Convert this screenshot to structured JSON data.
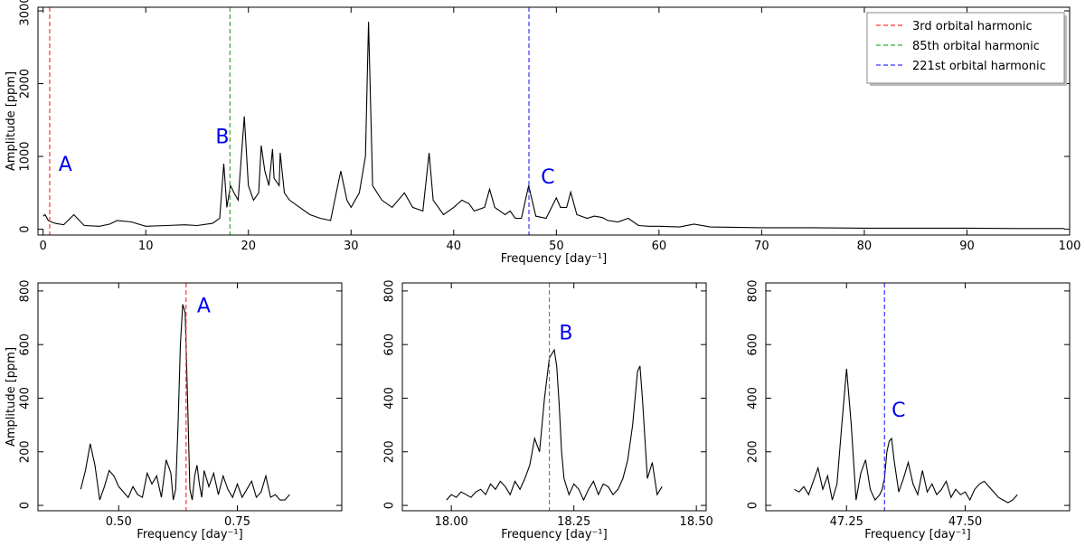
{
  "chart_data": [
    {
      "id": "main",
      "type": "line",
      "xlabel": "Frequency [day$^{-1}$]",
      "xlabel_display": "Frequency [day⁻¹]",
      "ylabel": "Amplitude [ppm]",
      "xlim": [
        -0.5,
        100
      ],
      "ylim": [
        -80,
        3050
      ],
      "xticks": [
        0,
        10,
        20,
        30,
        40,
        50,
        60,
        70,
        80,
        90,
        100
      ],
      "yticks": [
        0,
        1000,
        2000,
        3000
      ],
      "series": [
        {
          "style": "black-line",
          "x": [
            0,
            0.2,
            0.5,
            0.8,
            1.2,
            2,
            3,
            4,
            5.5,
            6.5,
            7.2,
            8.6,
            10,
            12,
            13.8,
            15,
            16.5,
            17.2,
            17.6,
            17.9,
            18.25,
            18.6,
            19,
            19.6,
            20,
            20.5,
            21,
            21.25,
            21.6,
            22,
            22.35,
            22.5,
            23,
            23.1,
            23.5,
            24,
            25,
            26,
            27,
            28,
            29,
            29.6,
            30,
            30.8,
            31.4,
            31.7,
            32.1,
            33,
            34,
            35.2,
            36,
            37,
            37.6,
            38,
            38.5,
            39,
            40,
            40.8,
            41.5,
            42,
            43,
            43.5,
            44,
            45,
            45.5,
            46,
            46.6,
            47.3,
            48,
            49,
            50,
            50.4,
            51,
            51.4,
            52,
            53,
            53.7,
            54.5,
            55,
            56,
            57,
            58,
            59,
            60,
            62,
            63.4,
            65,
            70,
            75,
            80,
            85,
            90,
            95,
            99.5
          ],
          "y": [
            180,
            200,
            120,
            100,
            80,
            60,
            200,
            50,
            40,
            70,
            120,
            100,
            40,
            50,
            60,
            50,
            80,
            150,
            900,
            300,
            600,
            500,
            400,
            1550,
            600,
            400,
            500,
            1150,
            800,
            600,
            1100,
            700,
            600,
            1050,
            500,
            400,
            300,
            200,
            150,
            120,
            800,
            400,
            300,
            500,
            1000,
            2850,
            600,
            400,
            300,
            500,
            300,
            250,
            1050,
            400,
            300,
            200,
            300,
            400,
            350,
            250,
            300,
            550,
            300,
            200,
            250,
            150,
            150,
            600,
            180,
            150,
            430,
            300,
            300,
            510,
            200,
            150,
            180,
            160,
            120,
            100,
            150,
            50,
            40,
            40,
            30,
            70,
            30,
            20,
            20,
            15,
            15,
            15,
            10,
            10
          ]
        }
      ],
      "vlines": [
        {
          "x": 0.642,
          "color": "#ff3333",
          "label": "3rd orbital harmonic"
        },
        {
          "x": 18.2,
          "color": "#33aa33",
          "label": "85th orbital harmonic"
        },
        {
          "x": 47.33,
          "color": "#3333ff",
          "label": "221st orbital harmonic"
        }
      ],
      "annotations": [
        {
          "text": "A",
          "x": 1.5,
          "y": 800
        },
        {
          "text": "B",
          "x": 16.8,
          "y": 1180
        },
        {
          "text": "C",
          "x": 48.5,
          "y": 630
        }
      ],
      "legend": "top-right"
    },
    {
      "id": "zoomA",
      "type": "line",
      "xlabel": "Frequency [day$^{-1}$]",
      "xlabel_display": "Frequency [day⁻¹]",
      "ylabel": "Amplitude [ppm]",
      "xlim": [
        0.33,
        0.97
      ],
      "ylim": [
        -20,
        830
      ],
      "xticks": [
        0.5,
        0.75
      ],
      "xtick_labels": [
        "0.50",
        "0.75"
      ],
      "yticks": [
        0,
        200,
        400,
        600,
        800
      ],
      "series": [
        {
          "style": "black-line",
          "x": [
            0.42,
            0.43,
            0.44,
            0.45,
            0.46,
            0.47,
            0.48,
            0.49,
            0.5,
            0.51,
            0.52,
            0.53,
            0.54,
            0.55,
            0.56,
            0.57,
            0.58,
            0.59,
            0.6,
            0.61,
            0.615,
            0.62,
            0.625,
            0.63,
            0.635,
            0.64,
            0.645,
            0.65,
            0.655,
            0.66,
            0.665,
            0.67,
            0.675,
            0.68,
            0.69,
            0.7,
            0.71,
            0.72,
            0.73,
            0.74,
            0.75,
            0.76,
            0.77,
            0.78,
            0.79,
            0.8,
            0.81,
            0.82,
            0.83,
            0.84,
            0.85,
            0.86
          ],
          "y": [
            60,
            130,
            230,
            150,
            20,
            70,
            130,
            110,
            70,
            50,
            30,
            70,
            40,
            30,
            120,
            80,
            110,
            30,
            170,
            120,
            20,
            60,
            300,
            600,
            750,
            720,
            400,
            60,
            20,
            110,
            150,
            80,
            30,
            130,
            70,
            120,
            40,
            110,
            60,
            30,
            80,
            30,
            60,
            90,
            30,
            50,
            110,
            30,
            40,
            20,
            20,
            40
          ]
        }
      ],
      "vlines": [
        {
          "x": 0.642,
          "color": "#ff3333"
        }
      ],
      "annotations": [
        {
          "text": "A",
          "x": 0.665,
          "y": 720
        }
      ]
    },
    {
      "id": "zoomB",
      "type": "line",
      "xlabel": "Frequency [day$^{-1}$]",
      "xlabel_display": "Frequency [day⁻¹]",
      "ylabel": "",
      "xlim": [
        17.9,
        18.52
      ],
      "ylim": [
        -20,
        830
      ],
      "xticks": [
        18.0,
        18.25,
        18.5
      ],
      "xtick_labels": [
        "18.00",
        "18.25",
        "18.50"
      ],
      "yticks": [
        0,
        200,
        400,
        600,
        800
      ],
      "series": [
        {
          "style": "black-line",
          "x": [
            17.99,
            18.0,
            18.01,
            18.02,
            18.03,
            18.04,
            18.05,
            18.06,
            18.07,
            18.08,
            18.09,
            18.1,
            18.11,
            18.12,
            18.13,
            18.14,
            18.15,
            18.16,
            18.17,
            18.18,
            18.19,
            18.2,
            18.21,
            18.215,
            18.22,
            18.225,
            18.23,
            18.24,
            18.25,
            18.26,
            18.27,
            18.28,
            18.29,
            18.3,
            18.31,
            18.32,
            18.33,
            18.34,
            18.35,
            18.36,
            18.37,
            18.38,
            18.385,
            18.39,
            18.4,
            18.41,
            18.42,
            18.43
          ],
          "y": [
            20,
            40,
            30,
            50,
            40,
            30,
            50,
            60,
            40,
            80,
            60,
            90,
            70,
            40,
            90,
            60,
            100,
            150,
            250,
            200,
            400,
            550,
            580,
            520,
            380,
            200,
            100,
            40,
            80,
            60,
            20,
            60,
            90,
            40,
            80,
            70,
            40,
            60,
            100,
            170,
            300,
            500,
            520,
            400,
            100,
            160,
            40,
            70
          ]
        }
      ],
      "vlines": [
        {
          "x": 18.2,
          "color": "#33aa33"
        }
      ],
      "annotations": [
        {
          "text": "B",
          "x": 18.22,
          "y": 620
        }
      ]
    },
    {
      "id": "zoomC",
      "type": "line",
      "xlabel": "Frequency [day$^{-1}$]",
      "xlabel_display": "Frequency [day⁻¹]",
      "ylabel": "",
      "xlim": [
        47.08,
        47.72
      ],
      "ylim": [
        -20,
        830
      ],
      "xticks": [
        47.25,
        47.5
      ],
      "xtick_labels": [
        "47.25",
        "47.50"
      ],
      "yticks": [
        0,
        200,
        400,
        600,
        800
      ],
      "series": [
        {
          "style": "black-line",
          "x": [
            47.14,
            47.15,
            47.16,
            47.17,
            47.18,
            47.19,
            47.2,
            47.21,
            47.22,
            47.23,
            47.24,
            47.25,
            47.26,
            47.27,
            47.28,
            47.29,
            47.3,
            47.31,
            47.32,
            47.325,
            47.33,
            47.335,
            47.34,
            47.345,
            47.35,
            47.36,
            47.37,
            47.38,
            47.39,
            47.4,
            47.41,
            47.42,
            47.43,
            47.44,
            47.45,
            47.46,
            47.47,
            47.48,
            47.49,
            47.5,
            47.51,
            47.52,
            47.53,
            47.54,
            47.55,
            47.56,
            47.57,
            47.58,
            47.59,
            47.6,
            47.61
          ],
          "y": [
            60,
            50,
            70,
            40,
            90,
            140,
            60,
            110,
            20,
            80,
            300,
            510,
            300,
            20,
            120,
            170,
            60,
            20,
            40,
            60,
            100,
            200,
            240,
            250,
            170,
            50,
            100,
            160,
            80,
            40,
            130,
            50,
            80,
            40,
            60,
            90,
            30,
            60,
            40,
            50,
            20,
            60,
            80,
            90,
            70,
            50,
            30,
            20,
            10,
            20,
            40
          ]
        }
      ],
      "vlines": [
        {
          "x": 47.33,
          "color": "#3333ff"
        }
      ],
      "annotations": [
        {
          "text": "C",
          "x": 47.345,
          "y": 330
        }
      ]
    }
  ]
}
